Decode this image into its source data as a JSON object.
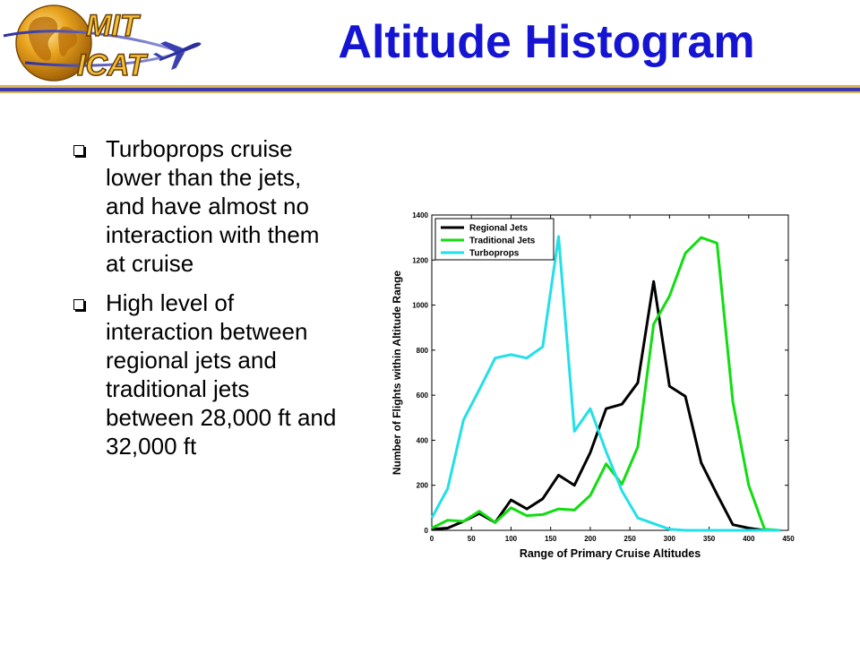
{
  "logo": {
    "line1": "MIT",
    "line2": "ICAT"
  },
  "title": "Altitude Histogram",
  "bullets": [
    "Turboprops cruise lower than the jets, and have almost no interaction with them at cruise",
    "High level of interaction between regional jets and traditional jets between 28,000 ft and 32,000 ft"
  ],
  "chart_data": {
    "type": "line",
    "xlabel": "Range of Primary Cruise Altitudes",
    "ylabel": "Number of Flights within Altitude Range",
    "xlim": [
      0,
      450
    ],
    "ylim": [
      0,
      1400
    ],
    "xticks": [
      0,
      50,
      100,
      150,
      200,
      250,
      300,
      350,
      400,
      450
    ],
    "yticks": [
      0,
      200,
      400,
      600,
      800,
      1000,
      1200,
      1400
    ],
    "grid": false,
    "legend_position": "top-left",
    "x": [
      0,
      20,
      40,
      60,
      80,
      100,
      120,
      140,
      160,
      180,
      200,
      220,
      240,
      260,
      280,
      300,
      320,
      340,
      360,
      380,
      400,
      420,
      440
    ],
    "series": [
      {
        "name": "Regional Jets",
        "color": "#000000",
        "values": [
          5,
          10,
          40,
          75,
          35,
          135,
          95,
          140,
          245,
          200,
          345,
          540,
          560,
          655,
          1105,
          640,
          595,
          300,
          160,
          25,
          10,
          0,
          0
        ]
      },
      {
        "name": "Traditional Jets",
        "color": "#11dd11",
        "values": [
          10,
          45,
          40,
          85,
          35,
          100,
          65,
          70,
          95,
          90,
          155,
          295,
          205,
          370,
          915,
          1040,
          1230,
          1300,
          1275,
          570,
          200,
          5,
          0
        ]
      },
      {
        "name": "Turboprops",
        "color": "#22e0e8",
        "values": [
          55,
          185,
          490,
          625,
          765,
          780,
          765,
          815,
          1305,
          440,
          540,
          350,
          175,
          55,
          30,
          5,
          0,
          0,
          0,
          0,
          0,
          0,
          0
        ]
      }
    ]
  }
}
